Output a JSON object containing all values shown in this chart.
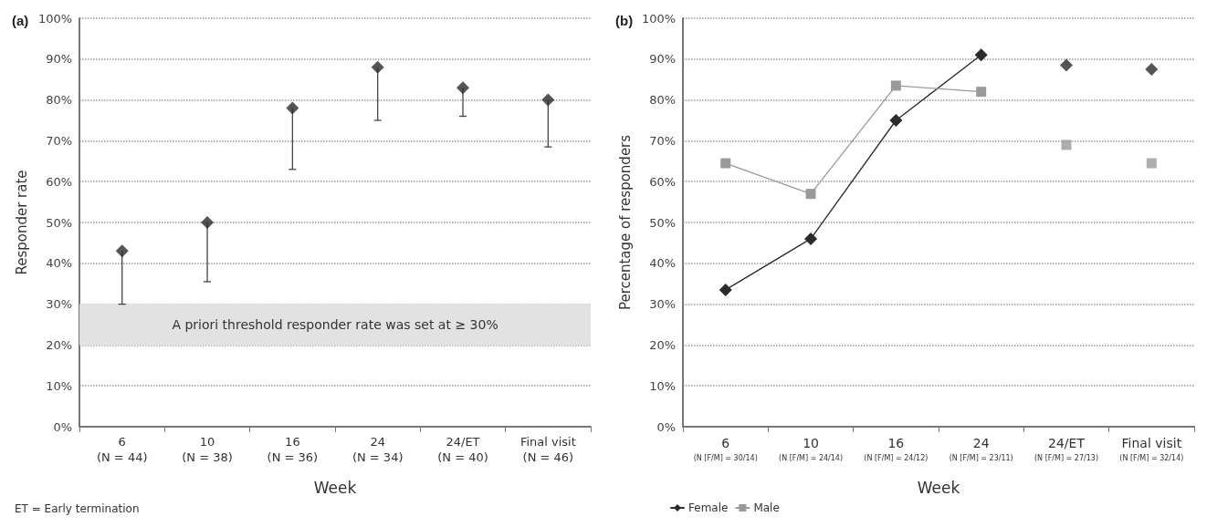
{
  "chart_data": [
    {
      "type": "scatter",
      "title": "(a)",
      "xlabel": "Week",
      "ylabel": "Responder rate",
      "categories": [
        "6\n(N = 44)",
        "10\n(N = 38)",
        "16\n(N = 36)",
        "24\n(N = 34)",
        "24/ET\n(N = 40)",
        "Final visit\n(N = 46)"
      ],
      "values": [
        43,
        50,
        78,
        88,
        83,
        80
      ],
      "color": "#2b2b2b",
      "marker": "diamond",
      "errors": [
        [
          30,
          43
        ],
        [
          35.5,
          50
        ],
        [
          63,
          78
        ],
        [
          75,
          88
        ],
        [
          76,
          83
        ],
        [
          68.5,
          80
        ]
      ],
      "ylim": [
        0,
        100
      ],
      "yticks": [
        {
          "value": 0,
          "label": "0%"
        },
        {
          "value": 10,
          "label": "10%"
        },
        {
          "value": 20,
          "label": "20%"
        },
        {
          "value": 30,
          "label": "30%"
        },
        {
          "value": 40,
          "label": "40%"
        },
        {
          "value": 50,
          "label": "50%"
        },
        {
          "value": 60,
          "label": "60%"
        },
        {
          "value": 70,
          "label": "70%"
        },
        {
          "value": 80,
          "label": "80%"
        },
        {
          "value": 90,
          "label": "90%"
        },
        {
          "value": 100,
          "label": "100%"
        }
      ],
      "bands": [
        {
          "axis": "y",
          "from": 20,
          "to": 30,
          "label": "A priori threshold responder rate was set at ≥ 30%",
          "color": "#e2e2e3"
        }
      ],
      "annotations": [
        "ET = Early termination"
      ],
      "grid": "y",
      "legend": false
    },
    {
      "type": "line",
      "title": "(b)",
      "xlabel": "Week",
      "ylabel": "Percentage of responders",
      "categories": [
        "6\n(N [F/M] = 30/14)",
        "10\n(N [F/M] = 24/14)",
        "16\n(N [F/M] = 24/12)",
        "24\n(N [F/M] = 23/11)",
        "24/ET\n(N [F/M] = 27/13)",
        "Final visit\n(N [F/M] = 32/14)"
      ],
      "series": [
        {
          "name": "Female",
          "color": "#2b2b2b",
          "marker": "diamond",
          "values": [
            33.5,
            46,
            75,
            91,
            null,
            null
          ]
        },
        {
          "type": "scatter",
          "color": "#2b2b2b",
          "marker": "diamond",
          "values": [
            null,
            null,
            null,
            null,
            88.5,
            87.5
          ]
        },
        {
          "name": "Male",
          "color": "#9a9a9a",
          "marker": "square",
          "values": [
            64.5,
            57,
            83.5,
            82,
            null,
            null
          ]
        },
        {
          "type": "scatter",
          "color": "#9a9a9a",
          "marker": "square",
          "values": [
            null,
            null,
            null,
            null,
            69,
            64.5
          ]
        }
      ],
      "ylim": [
        0,
        100
      ],
      "yticks": [
        {
          "value": 0,
          "label": "0%"
        },
        {
          "value": 10,
          "label": "10%"
        },
        {
          "value": 20,
          "label": "20%"
        },
        {
          "value": 30,
          "label": "30%"
        },
        {
          "value": 40,
          "label": "40%"
        },
        {
          "value": 50,
          "label": "50%"
        },
        {
          "value": 60,
          "label": "60%"
        },
        {
          "value": 70,
          "label": "70%"
        },
        {
          "value": 80,
          "label": "80%"
        },
        {
          "value": 90,
          "label": "90%"
        },
        {
          "value": 100,
          "label": "100%"
        }
      ],
      "line_style": "solid",
      "grid": "y",
      "legend": "bottom left"
    }
  ]
}
